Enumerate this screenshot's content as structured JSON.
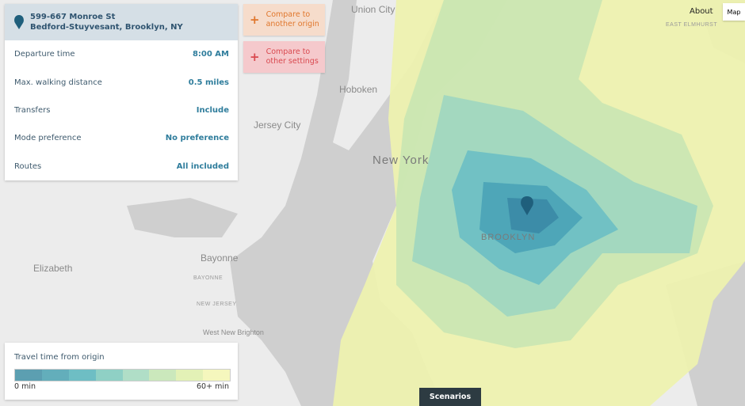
{
  "origin": {
    "address": "599-667 Monroe St",
    "neighborhood": "Bedford-Stuyvesant, Brooklyn, NY"
  },
  "settings": [
    {
      "label": "Departure time",
      "value": "8:00 AM"
    },
    {
      "label": "Max. walking distance",
      "value": "0.5 miles"
    },
    {
      "label": "Transfers",
      "value": "Include"
    },
    {
      "label": "Mode preference",
      "value": "No preference"
    },
    {
      "label": "Routes",
      "value": "All included"
    }
  ],
  "actions": [
    "Compare to another origin",
    "Compare to other settings"
  ],
  "nav": {
    "about": "About",
    "map": "Map"
  },
  "legend": {
    "title": "Travel time from origin",
    "min": "0 min",
    "max": "60+ min"
  },
  "scenarios": "Scenarios",
  "map_labels": [
    "Union City",
    "Hoboken",
    "Jersey City",
    "New York",
    "BROOKLYN",
    "Bayonne",
    "Elizabeth",
    "West New Brighton",
    "EAST ELMHURST",
    "BAYONNE",
    "NEW JERSEY"
  ]
}
